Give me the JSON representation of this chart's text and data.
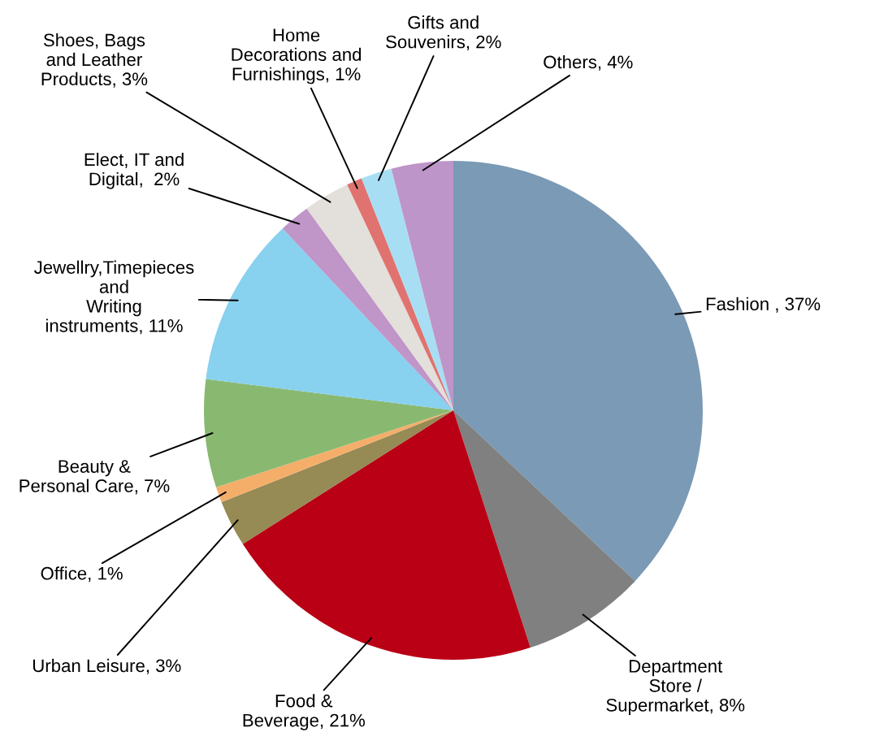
{
  "chart_data": {
    "type": "pie",
    "categories": [
      "Fashion",
      "Department\nStore /\nSupermarket",
      "Food &\nBeverage",
      "Urban Leisure",
      "Office",
      "Beauty &\nPersonal Care",
      "Jewellry,Timepieces\nand\nWriting\ninstruments",
      "Elect, IT and\nDigital",
      "Shoes, Bags\nand Leather\nProducts",
      "Home\nDecorations and\nFurnishings",
      "Gifts and\nSouvenirs",
      "Others"
    ],
    "values": [
      37,
      8,
      21,
      3,
      1,
      7,
      11,
      2,
      3,
      1,
      2,
      4
    ],
    "value_labels": [
      "37%",
      "8%",
      "21%",
      "3%",
      "1%",
      "7%",
      "11%",
      "2%",
      "3%",
      "1%",
      "2%",
      "4%"
    ],
    "colors": [
      "#7a9ab5",
      "#808080",
      "#b90015",
      "#968a55",
      "#f5ae6a",
      "#89b971",
      "#88d1ef",
      "#c095c8",
      "#e3dfda",
      "#e07370",
      "#a8def3",
      "#be95c8"
    ]
  }
}
